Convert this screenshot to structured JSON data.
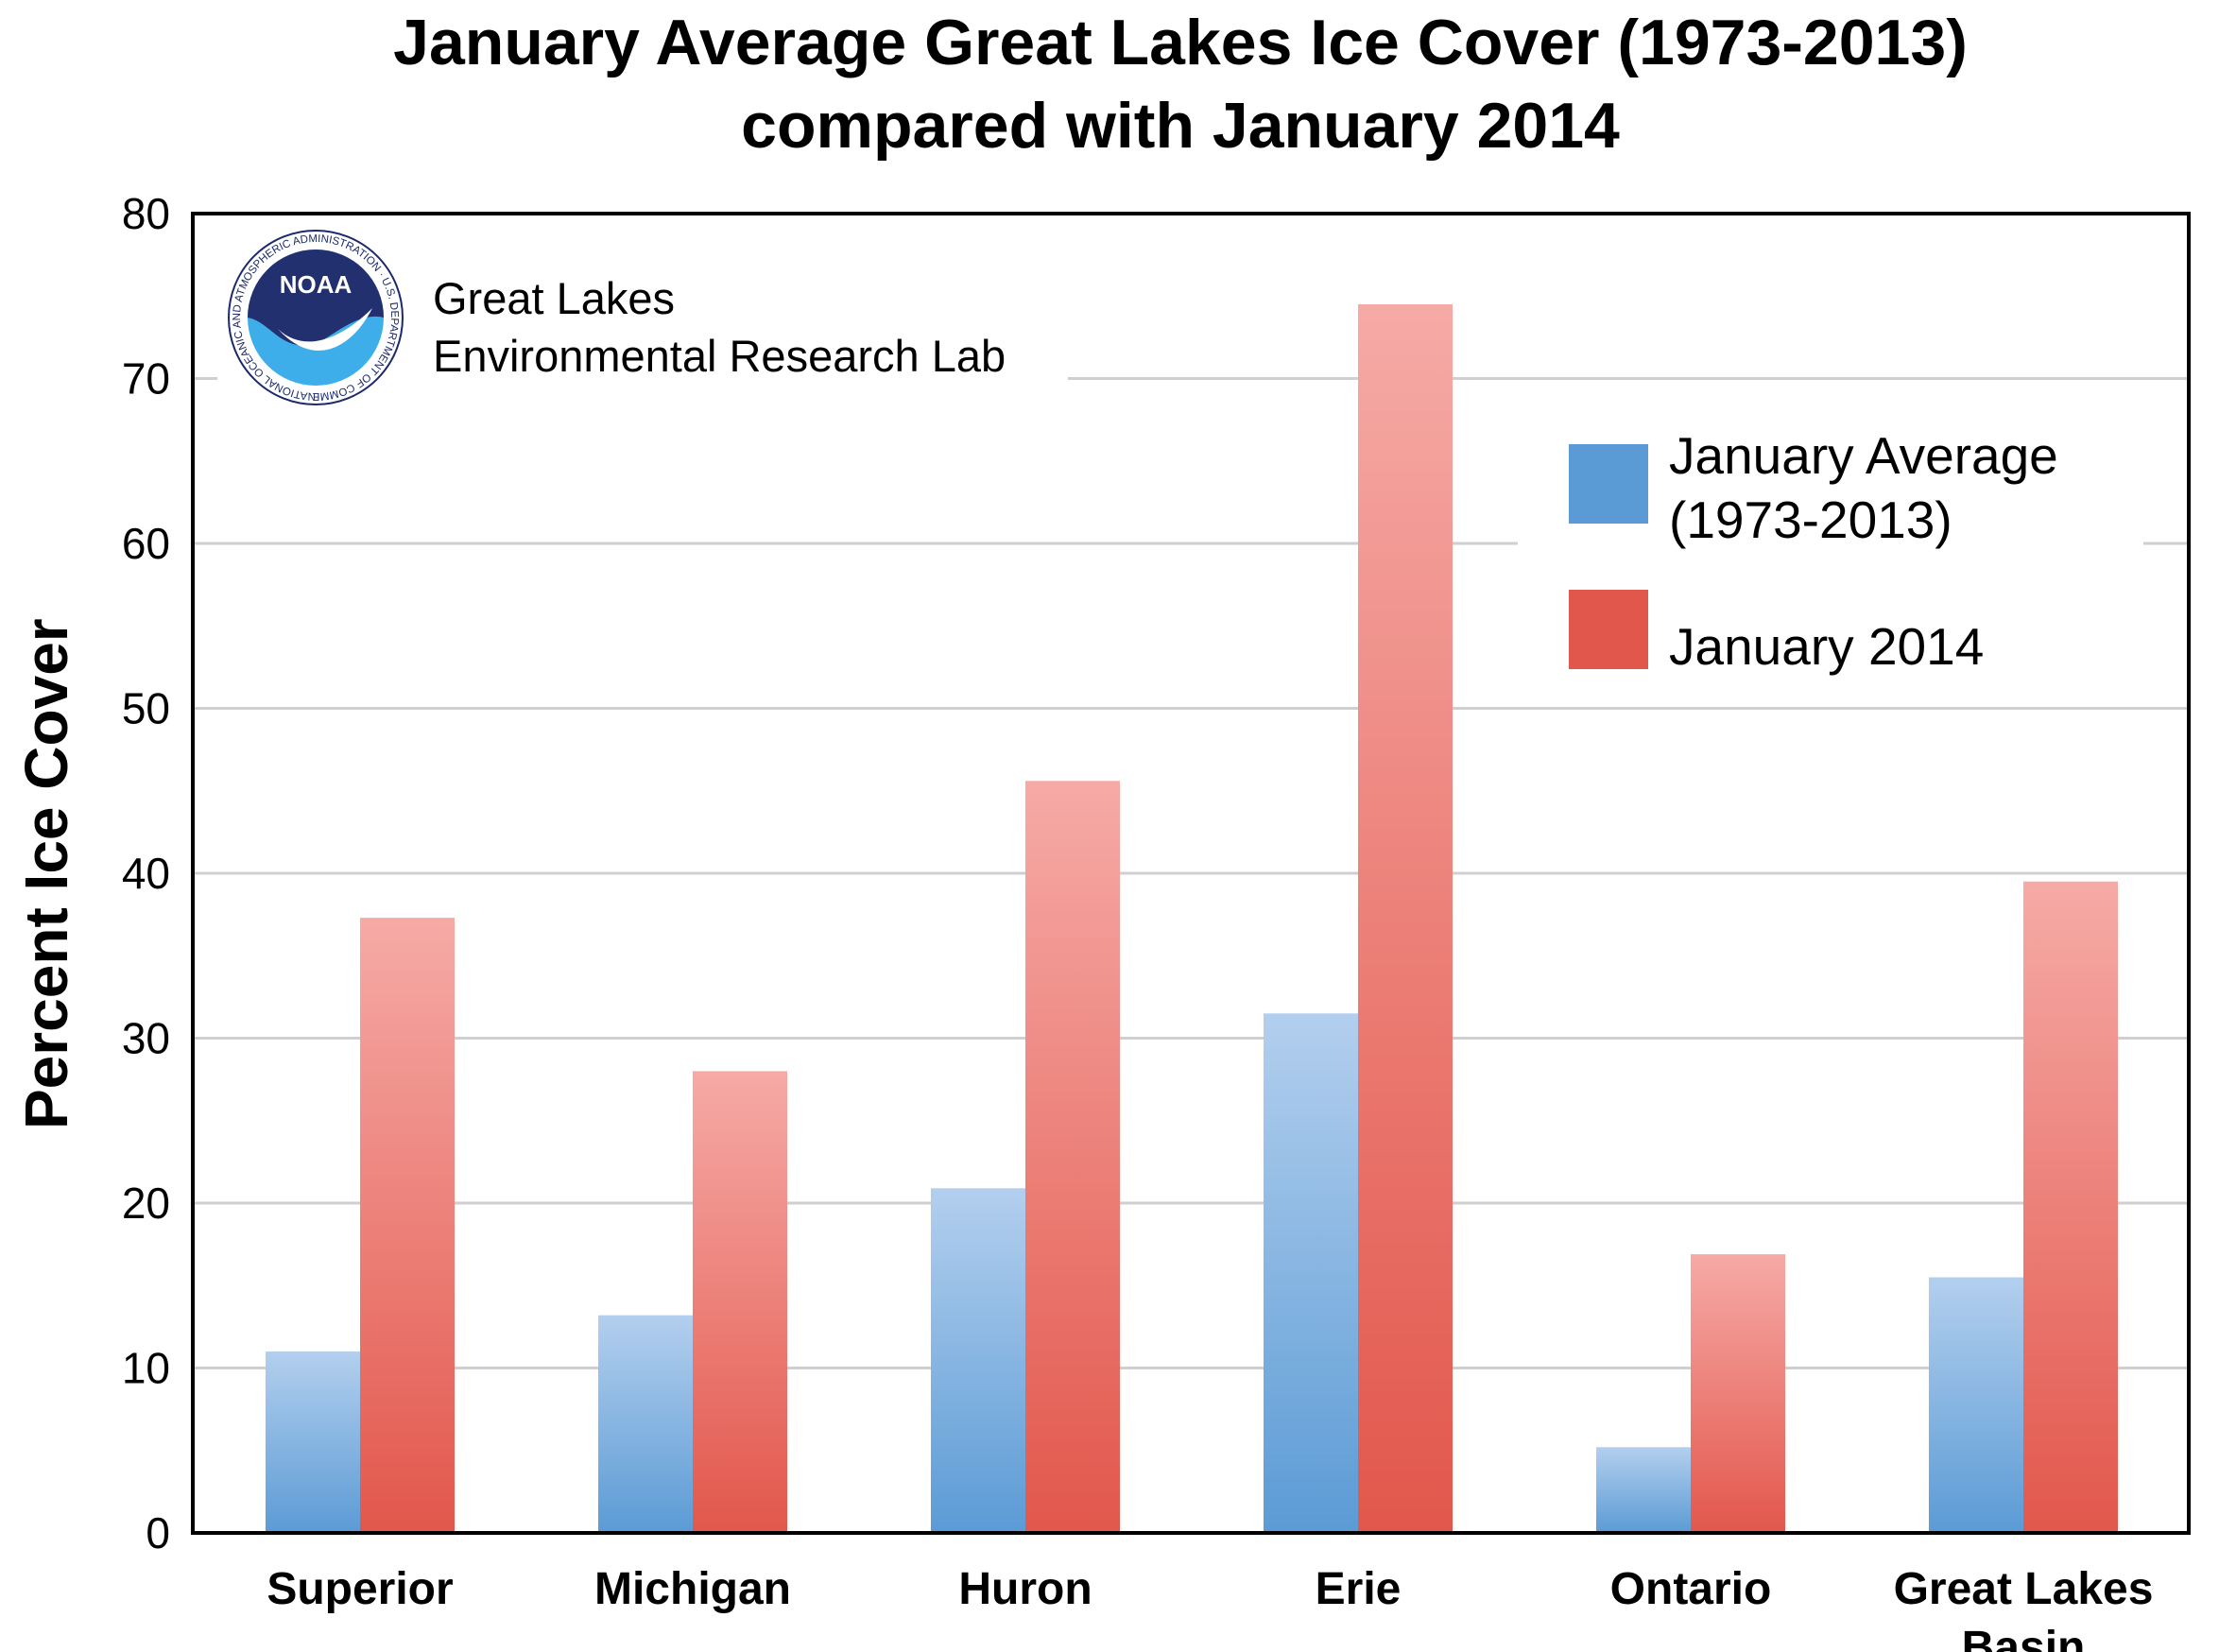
{
  "chart_data": {
    "type": "bar",
    "title": [
      "January Average Great Lakes Ice Cover (1973-2013)",
      "compared with January 2014"
    ],
    "ylabel": "Percent Ice Cover",
    "xlabel": "",
    "ylim": [
      0,
      80
    ],
    "yticks": [
      0,
      10,
      20,
      30,
      40,
      50,
      60,
      70,
      80
    ],
    "grid": true,
    "legend_position": "top-right",
    "categories": [
      [
        "Superior"
      ],
      [
        "Michigan"
      ],
      [
        "Huron"
      ],
      [
        "Erie"
      ],
      [
        "Ontario"
      ],
      [
        "Great Lakes",
        "Basin"
      ]
    ],
    "series": [
      {
        "name": [
          "January Average",
          "(1973-2013)"
        ],
        "color": "#5b9bd5",
        "values": [
          11.0,
          13.2,
          20.9,
          31.5,
          5.2,
          15.5
        ]
      },
      {
        "name": [
          "January 2014"
        ],
        "color": "#e2574c",
        "values": [
          37.3,
          28.0,
          45.6,
          74.5,
          16.9,
          39.5
        ]
      }
    ]
  },
  "logo": {
    "badge_text": "NOAA",
    "ring_text": "NATIONAL OCEANIC AND ATMOSPHERIC ADMINISTRATION · U.S. DEPARTMENT OF COMMERCE",
    "lab_name": [
      "Great Lakes",
      "Environmental Research Lab"
    ]
  }
}
